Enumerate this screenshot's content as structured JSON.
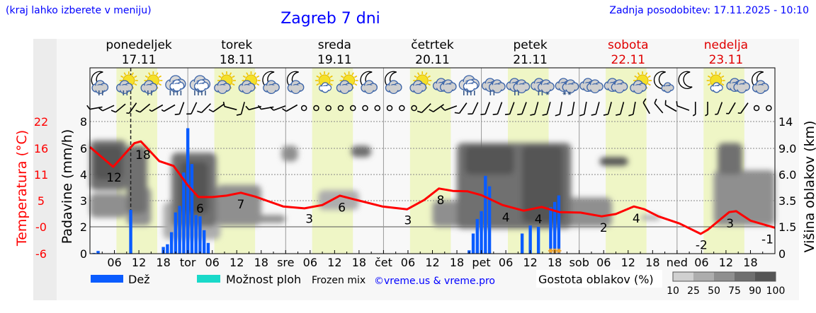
{
  "header": {
    "hint": "(kraj lahko izberete v meniju)",
    "title": "Zagreb 7 dni",
    "updated": "Zadnja posodobitev: 17.11.2025 - 10:10"
  },
  "colors": {
    "text_blue": "#0000ff",
    "temperature": "#ff0000",
    "rain": "#0a5cff",
    "showers": "#19d9c9",
    "daylight": "#eff6c6",
    "weekend": "#e00000",
    "snow_marker": "#f5a623"
  },
  "days": [
    {
      "name": "ponedeljek",
      "date": "17.11",
      "weekend": false
    },
    {
      "name": "torek",
      "date": "18.11",
      "weekend": false
    },
    {
      "name": "sreda",
      "date": "19.11",
      "weekend": false
    },
    {
      "name": "četrtek",
      "date": "20.11",
      "weekend": false
    },
    {
      "name": "petek",
      "date": "21.11",
      "weekend": false
    },
    {
      "name": "sobota",
      "date": "22.11",
      "weekend": true
    },
    {
      "name": "nedelja",
      "date": "23.11",
      "weekend": true
    }
  ],
  "chart_data": {
    "type": "meteogram",
    "time_range_hours": [
      0,
      168
    ],
    "now_hour": 10,
    "daylight_hours": [
      6.5,
      16.5
    ],
    "x_tick_labels": [
      "",
      "06",
      "12",
      "18",
      "tor",
      "06",
      "12",
      "18",
      "sre",
      "06",
      "12",
      "18",
      "čet",
      "06",
      "12",
      "18",
      "pet",
      "06",
      "12",
      "18",
      "sob",
      "06",
      "12",
      "18",
      "ned",
      "06",
      "12",
      "18"
    ],
    "temperature": {
      "axis_label": "Temperatura (°C)",
      "ticks": [
        "22",
        "16",
        "11",
        "5",
        "-0",
        "-6"
      ],
      "range": [
        -6,
        22
      ],
      "points": [
        [
          0,
          16.6
        ],
        [
          5.7,
          12.4
        ],
        [
          10.9,
          17.4
        ],
        [
          12.5,
          17.8
        ],
        [
          17,
          13.6
        ],
        [
          20.5,
          12.6
        ],
        [
          24,
          8.5
        ],
        [
          26.6,
          6.0
        ],
        [
          30,
          6.0
        ],
        [
          33.5,
          6.3
        ],
        [
          37,
          6.9
        ],
        [
          40.5,
          6.1
        ],
        [
          47.4,
          4.0
        ],
        [
          52.6,
          3.6
        ],
        [
          57,
          4.3
        ],
        [
          61.3,
          6.3
        ],
        [
          64.8,
          5.5
        ],
        [
          71.7,
          4.0
        ],
        [
          77.8,
          3.4
        ],
        [
          82,
          5.4
        ],
        [
          85.6,
          7.8
        ],
        [
          89,
          7.3
        ],
        [
          92.6,
          7.2
        ],
        [
          96,
          6.4
        ],
        [
          101.2,
          4.3
        ],
        [
          106.4,
          3.1
        ],
        [
          110.8,
          3.9
        ],
        [
          115.1,
          2.8
        ],
        [
          120.3,
          2.7
        ],
        [
          125.5,
          1.9
        ],
        [
          129,
          2.4
        ],
        [
          133.4,
          4.0
        ],
        [
          136,
          3.4
        ],
        [
          139.4,
          1.9
        ],
        [
          144.6,
          0.4
        ],
        [
          149.8,
          -1.8
        ],
        [
          151.6,
          -0.9
        ],
        [
          156.8,
          2.8
        ],
        [
          158.5,
          3.0
        ],
        [
          162,
          1.0
        ],
        [
          168,
          -0.5
        ]
      ],
      "labels": [
        {
          "hour": 5.9,
          "value": "12"
        },
        {
          "hour": 13,
          "value": "18"
        },
        {
          "hour": 27,
          "value": "6"
        },
        {
          "hour": 37,
          "value": "7"
        },
        {
          "hour": 53.8,
          "value": "3"
        },
        {
          "hour": 61.8,
          "value": "6"
        },
        {
          "hour": 78,
          "value": "3"
        },
        {
          "hour": 86,
          "value": "8"
        },
        {
          "hour": 102,
          "value": "4"
        },
        {
          "hour": 110,
          "value": "4"
        },
        {
          "hour": 126,
          "value": "2"
        },
        {
          "hour": 134,
          "value": "4"
        },
        {
          "hour": 150,
          "value": "-2"
        },
        {
          "hour": 157,
          "value": "3"
        },
        {
          "hour": 168,
          "value": "-1"
        }
      ]
    },
    "precipitation": {
      "axis_label": "Padavine (mm/h)",
      "ticks": [
        0,
        2,
        3,
        4,
        6,
        8
      ],
      "tick_labels": [
        "0",
        "2",
        "3",
        "4",
        "6",
        "8"
      ],
      "bars": [
        [
          1,
          0.05
        ],
        [
          2,
          0.2
        ],
        [
          10,
          2.65
        ],
        [
          18,
          0.5
        ],
        [
          19,
          0.7
        ],
        [
          20,
          1.6
        ],
        [
          21,
          2.55
        ],
        [
          22,
          2.8
        ],
        [
          23,
          4.15
        ],
        [
          24,
          7.5
        ],
        [
          25,
          4.8
        ],
        [
          26,
          2.45
        ],
        [
          27,
          2.4
        ],
        [
          28,
          1.75
        ],
        [
          29,
          0.8
        ],
        [
          93,
          0.25
        ],
        [
          94,
          1.5
        ],
        [
          95,
          2.3
        ],
        [
          96,
          2.6
        ],
        [
          97,
          3.95
        ],
        [
          98,
          3.55
        ],
        [
          106,
          1.5
        ],
        [
          108,
          2.05
        ],
        [
          110,
          2.0
        ],
        [
          113,
          2.75
        ],
        [
          114,
          2.95
        ],
        [
          115,
          3.2
        ]
      ],
      "snow_hours": [
        113,
        114,
        115
      ]
    },
    "cloud_height": {
      "axis_label": "Višina oblakov (km)",
      "ticks": [
        0,
        1.5,
        3.5,
        6.0,
        9.0,
        14
      ],
      "tick_labels": [
        "0",
        "1.5",
        "3.5",
        "6.0",
        "9.0",
        "14"
      ],
      "blobs": [
        {
          "t": [
            0,
            9
          ],
          "km": [
            2.2,
            4.2
          ],
          "density": 50
        },
        {
          "t": [
            0,
            9
          ],
          "km": [
            4.5,
            10.5
          ],
          "density": 75
        },
        {
          "t": [
            1,
            8
          ],
          "km": [
            5.5,
            9.5
          ],
          "density": 90
        },
        {
          "t": [
            9,
            15
          ],
          "km": [
            1.6,
            4.8
          ],
          "density": 50
        },
        {
          "t": [
            9,
            14
          ],
          "km": [
            2.5,
            9.5
          ],
          "density": 75
        },
        {
          "t": [
            18,
            32
          ],
          "km": [
            0.8,
            3.4
          ],
          "density": 25
        },
        {
          "t": [
            20,
            31
          ],
          "km": [
            1.5,
            8.5
          ],
          "density": 75
        },
        {
          "t": [
            22,
            29
          ],
          "km": [
            2.5,
            7.5
          ],
          "density": 90
        },
        {
          "t": [
            31,
            42
          ],
          "km": [
            1.6,
            5.0
          ],
          "density": 50
        },
        {
          "t": [
            40,
            48
          ],
          "km": [
            1.8,
            2.4
          ],
          "density": 50
        },
        {
          "t": [
            47,
            51
          ],
          "km": [
            7.5,
            9.5
          ],
          "density": 50
        },
        {
          "t": [
            56,
            66
          ],
          "km": [
            2.8,
            4.5
          ],
          "density": 25
        },
        {
          "t": [
            64,
            69
          ],
          "km": [
            8.0,
            9.5
          ],
          "density": 75
        },
        {
          "t": [
            84,
            96
          ],
          "km": [
            1.5,
            3.5
          ],
          "density": 50
        },
        {
          "t": [
            90,
            118
          ],
          "km": [
            1.4,
            10
          ],
          "density": 75
        },
        {
          "t": [
            92,
            104
          ],
          "km": [
            6,
            9.5
          ],
          "density": 90
        },
        {
          "t": [
            106,
            116
          ],
          "km": [
            1.8,
            9.5
          ],
          "density": 90
        },
        {
          "t": [
            115,
            128
          ],
          "km": [
            1.5,
            3.8
          ],
          "density": 50
        },
        {
          "t": [
            125,
            132
          ],
          "km": [
            7.0,
            8.0
          ],
          "density": 90
        },
        {
          "t": [
            135,
            140
          ],
          "km": [
            2.0,
            2.4
          ],
          "density": 25
        },
        {
          "t": [
            153,
            168
          ],
          "km": [
            1.6,
            6.5
          ],
          "density": 50
        },
        {
          "t": [
            154,
            160
          ],
          "km": [
            6.0,
            10
          ],
          "density": 75
        }
      ]
    },
    "weather_icons": [
      "moon-cloud-rain",
      "sun-cloud-rain",
      "sun-cloud-rain",
      "cloud-heavy-rain",
      "cloud-heavy-rain",
      "sun-cloud",
      "sun-cloud",
      "moon-cloud",
      "moon-cloud",
      "sun-small-cloud",
      "sun-cloud",
      "moon-cloud",
      "moon-cloud",
      "sun-cloud",
      "cloud",
      "cloud-heavy-rain",
      "cloud-rain",
      "cloud-rain",
      "cloud-sleet",
      "cloud-snow",
      "cloud",
      "cloud",
      "sun-cloud",
      "moon-small-cloud",
      "moon",
      "sun-small-cloud",
      "cloud",
      "moon-cloud"
    ],
    "wind": [
      [
        260,
        10
      ],
      [
        245,
        10
      ],
      [
        230,
        10
      ],
      [
        215,
        5
      ],
      [
        230,
        10
      ],
      [
        240,
        5
      ],
      [
        240,
        5
      ],
      [
        200,
        10
      ],
      [
        205,
        10
      ],
      [
        225,
        10
      ],
      [
        235,
        10
      ],
      [
        285,
        10
      ],
      [
        195,
        10
      ],
      [
        255,
        10
      ],
      [
        260,
        10
      ],
      [
        250,
        10
      ],
      [
        240,
        10
      ],
      "calm",
      "calm",
      "calm",
      "calm",
      "calm",
      "calm",
      "calm",
      "calm",
      "calm",
      "calm",
      [
        225,
        10
      ],
      [
        235,
        10
      ],
      [
        250,
        10
      ],
      [
        215,
        10
      ],
      [
        205,
        10
      ],
      [
        200,
        10
      ],
      [
        200,
        10
      ],
      [
        200,
        10
      ],
      [
        200,
        10
      ],
      [
        195,
        10
      ],
      [
        195,
        10
      ],
      [
        190,
        10
      ],
      [
        190,
        10
      ],
      [
        190,
        10
      ],
      [
        195,
        10
      ],
      [
        195,
        10
      ],
      [
        195,
        10
      ],
      [
        190,
        10
      ],
      [
        330,
        10
      ],
      [
        320,
        10
      ],
      [
        300,
        10
      ],
      [
        290,
        10
      ],
      [
        180,
        5
      ],
      [
        180,
        5
      ],
      [
        200,
        5
      ],
      [
        210,
        5
      ],
      [
        215,
        5
      ],
      "calm",
      "calm"
    ],
    "grid": true
  },
  "legend": {
    "rain": "Dež",
    "showers": "Možnost ploh",
    "frozen": "Frozen mix",
    "credit": "©vreme.us & vreme.pro",
    "cloud_density": "Gostota oblakov (%)",
    "density_levels": [
      "10",
      "25",
      "50",
      "75",
      "90",
      "100"
    ]
  }
}
